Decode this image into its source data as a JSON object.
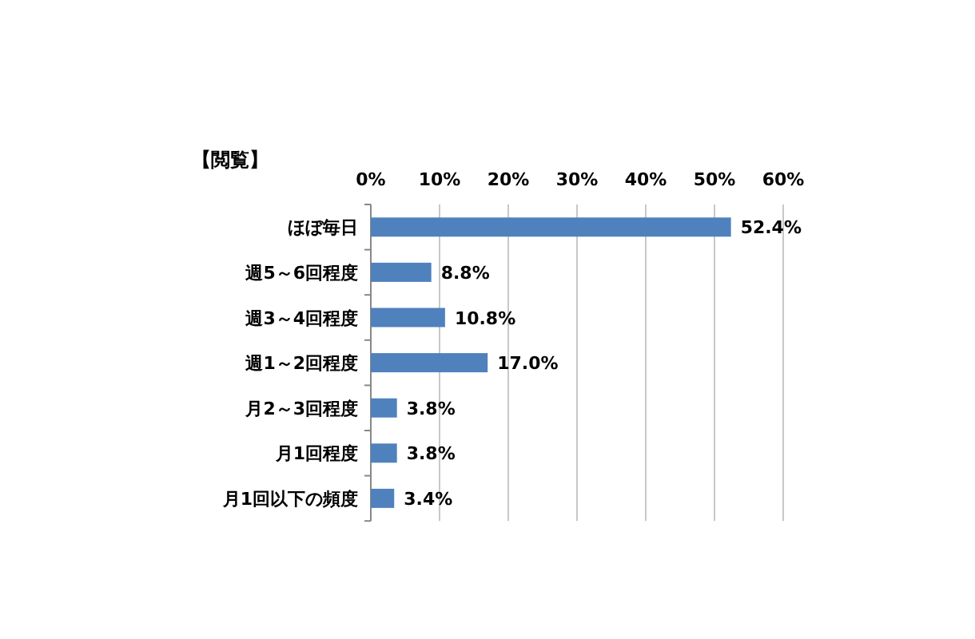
{
  "chart_data": {
    "type": "bar",
    "orientation": "horizontal",
    "title": "【閲覧】",
    "categories": [
      "ほぼ毎日",
      "週5～6回程度",
      "週3～4回程度",
      "週1～2回程度",
      "月2～3回程度",
      "月1回程度",
      "月1回以下の頻度"
    ],
    "values": [
      52.4,
      8.8,
      10.8,
      17.0,
      3.8,
      3.8,
      3.4
    ],
    "value_labels": [
      "52.4%",
      "8.8%",
      "10.8%",
      "17.0%",
      "3.8%",
      "3.8%",
      "3.4%"
    ],
    "color": "#4f81bd",
    "xlim": [
      0,
      60
    ],
    "xticks": [
      {
        "value": 0,
        "label": "0%"
      },
      {
        "value": 10,
        "label": "10%"
      },
      {
        "value": 20,
        "label": "20%"
      },
      {
        "value": 30,
        "label": "30%"
      },
      {
        "value": 40,
        "label": "40%"
      },
      {
        "value": 50,
        "label": "50%"
      },
      {
        "value": 60,
        "label": "60%"
      }
    ],
    "grid": "x"
  }
}
